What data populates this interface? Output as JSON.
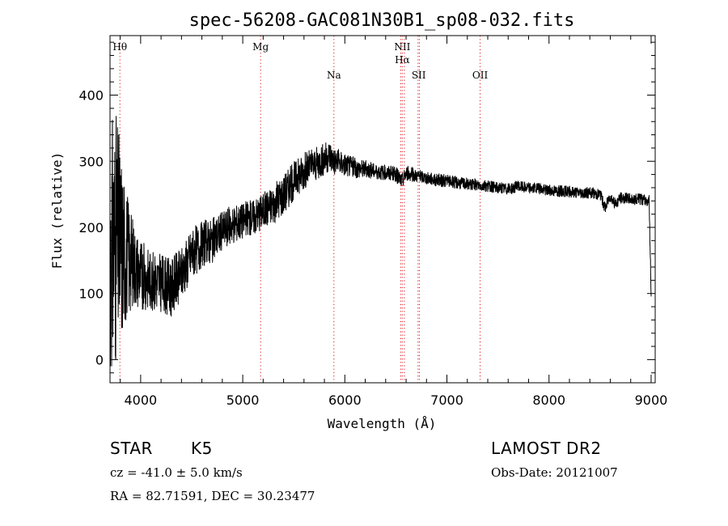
{
  "chart_data": {
    "type": "line",
    "title": "spec-56208-GAC081N30B1_sp08-032.fits",
    "xlabel": "Wavelength (Å)",
    "ylabel": "Flux (relative)",
    "xlim": [
      3700,
      9040
    ],
    "ylim": [
      -35,
      490
    ],
    "xticks": [
      4000,
      5000,
      6000,
      7000,
      8000,
      9000
    ],
    "yticks": [
      0,
      100,
      200,
      300,
      400
    ],
    "grid": false,
    "series": [
      {
        "x": [
          3700,
          3750,
          3800,
          3850,
          3900,
          3950,
          4000,
          4100,
          4200,
          4300,
          4400,
          4500,
          4600,
          4700,
          4800,
          4900,
          5000,
          5100,
          5200,
          5300,
          5400,
          5500,
          5600,
          5700,
          5800,
          5850,
          5900,
          6000,
          6100,
          6200,
          6300,
          6400,
          6500,
          6560,
          6600,
          6700,
          6800,
          6900,
          7000,
          7100,
          7200,
          7300,
          7400,
          7500,
          7600,
          7700,
          7800,
          7900,
          8000,
          8100,
          8200,
          8300,
          8400,
          8500,
          8550,
          8600,
          8650,
          8700,
          8800,
          8900,
          8980,
          9000
        ],
        "y": [
          150,
          180,
          170,
          160,
          150,
          140,
          130,
          120,
          115,
          110,
          130,
          160,
          175,
          180,
          195,
          205,
          210,
          215,
          225,
          235,
          250,
          270,
          285,
          295,
          305,
          310,
          300,
          295,
          290,
          288,
          285,
          283,
          280,
          270,
          282,
          278,
          275,
          272,
          270,
          268,
          266,
          264,
          262,
          260,
          258,
          262,
          260,
          258,
          256,
          255,
          254,
          253,
          252,
          250,
          230,
          248,
          235,
          245,
          243,
          242,
          240,
          100
        ],
        "noise": [
          200,
          200,
          160,
          110,
          80,
          60,
          55,
          45,
          45,
          45,
          40,
          40,
          35,
          35,
          30,
          30,
          28,
          28,
          28,
          30,
          32,
          30,
          28,
          26,
          26,
          24,
          22,
          18,
          16,
          14,
          12,
          12,
          12,
          12,
          12,
          10,
          10,
          10,
          10,
          10,
          9,
          9,
          9,
          9,
          9,
          9,
          9,
          9,
          9,
          9,
          9,
          9,
          9,
          9,
          9,
          9,
          9,
          9,
          9,
          9,
          9,
          9
        ]
      }
    ],
    "lines": [
      {
        "label": "Hθ",
        "x": 3797
      },
      {
        "label": "Mg",
        "x": 5175
      },
      {
        "label": "Na",
        "x": 5893
      },
      {
        "label": "NII",
        "x": 6548
      },
      {
        "label": "Hα",
        "x": 6563
      },
      {
        "label": "NII",
        "x": 6583
      },
      {
        "label": "SII",
        "x": 6717
      },
      {
        "label": "SII",
        "x": 6731
      },
      {
        "label": "OII",
        "x": 7325
      }
    ],
    "line_labels": [
      {
        "text": "Hθ",
        "x": 3797,
        "row": 0
      },
      {
        "text": "Mg",
        "x": 5175,
        "row": 0
      },
      {
        "text": "Na",
        "x": 5893,
        "row": 2
      },
      {
        "text": "NII",
        "x": 6563,
        "row": 0
      },
      {
        "text": "Hα",
        "x": 6563,
        "row": 1
      },
      {
        "text": "SII",
        "x": 6724,
        "row": 2
      },
      {
        "text": "OII",
        "x": 7325,
        "row": 2
      }
    ],
    "colors": {
      "spectrum": "#000000",
      "lines": "#e0141a",
      "axes": "#000000"
    }
  },
  "info": {
    "object_class": "STAR",
    "subclass": "K5",
    "survey": "LAMOST DR2",
    "velocity": "cz = -41.0 ± 5.0 km/s",
    "obs_date": "Obs-Date: 20121007",
    "coords": "RA =  82.71591, DEC =  30.23477"
  }
}
